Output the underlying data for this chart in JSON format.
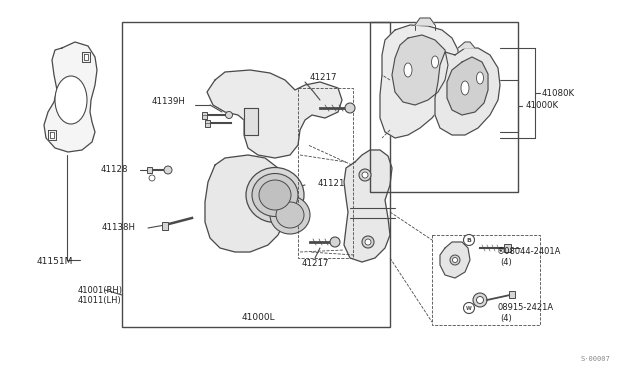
{
  "bg_color": "#ffffff",
  "line_color": "#4a4a4a",
  "fig_width": 6.4,
  "fig_height": 3.72,
  "dpi": 100,
  "watermark": "S·00007",
  "labels": {
    "41151M": [
      55,
      248
    ],
    "41001RH": "41001(RH)",
    "41011LH": "41011(LH)",
    "41139H": "41139H",
    "41217_top": "41217",
    "41128": "41128",
    "41138H": "41138H",
    "41121": "41121",
    "41217_bot": "41217",
    "41000L": "41000L",
    "41000K": "41000K",
    "41080K": "41080K"
  }
}
